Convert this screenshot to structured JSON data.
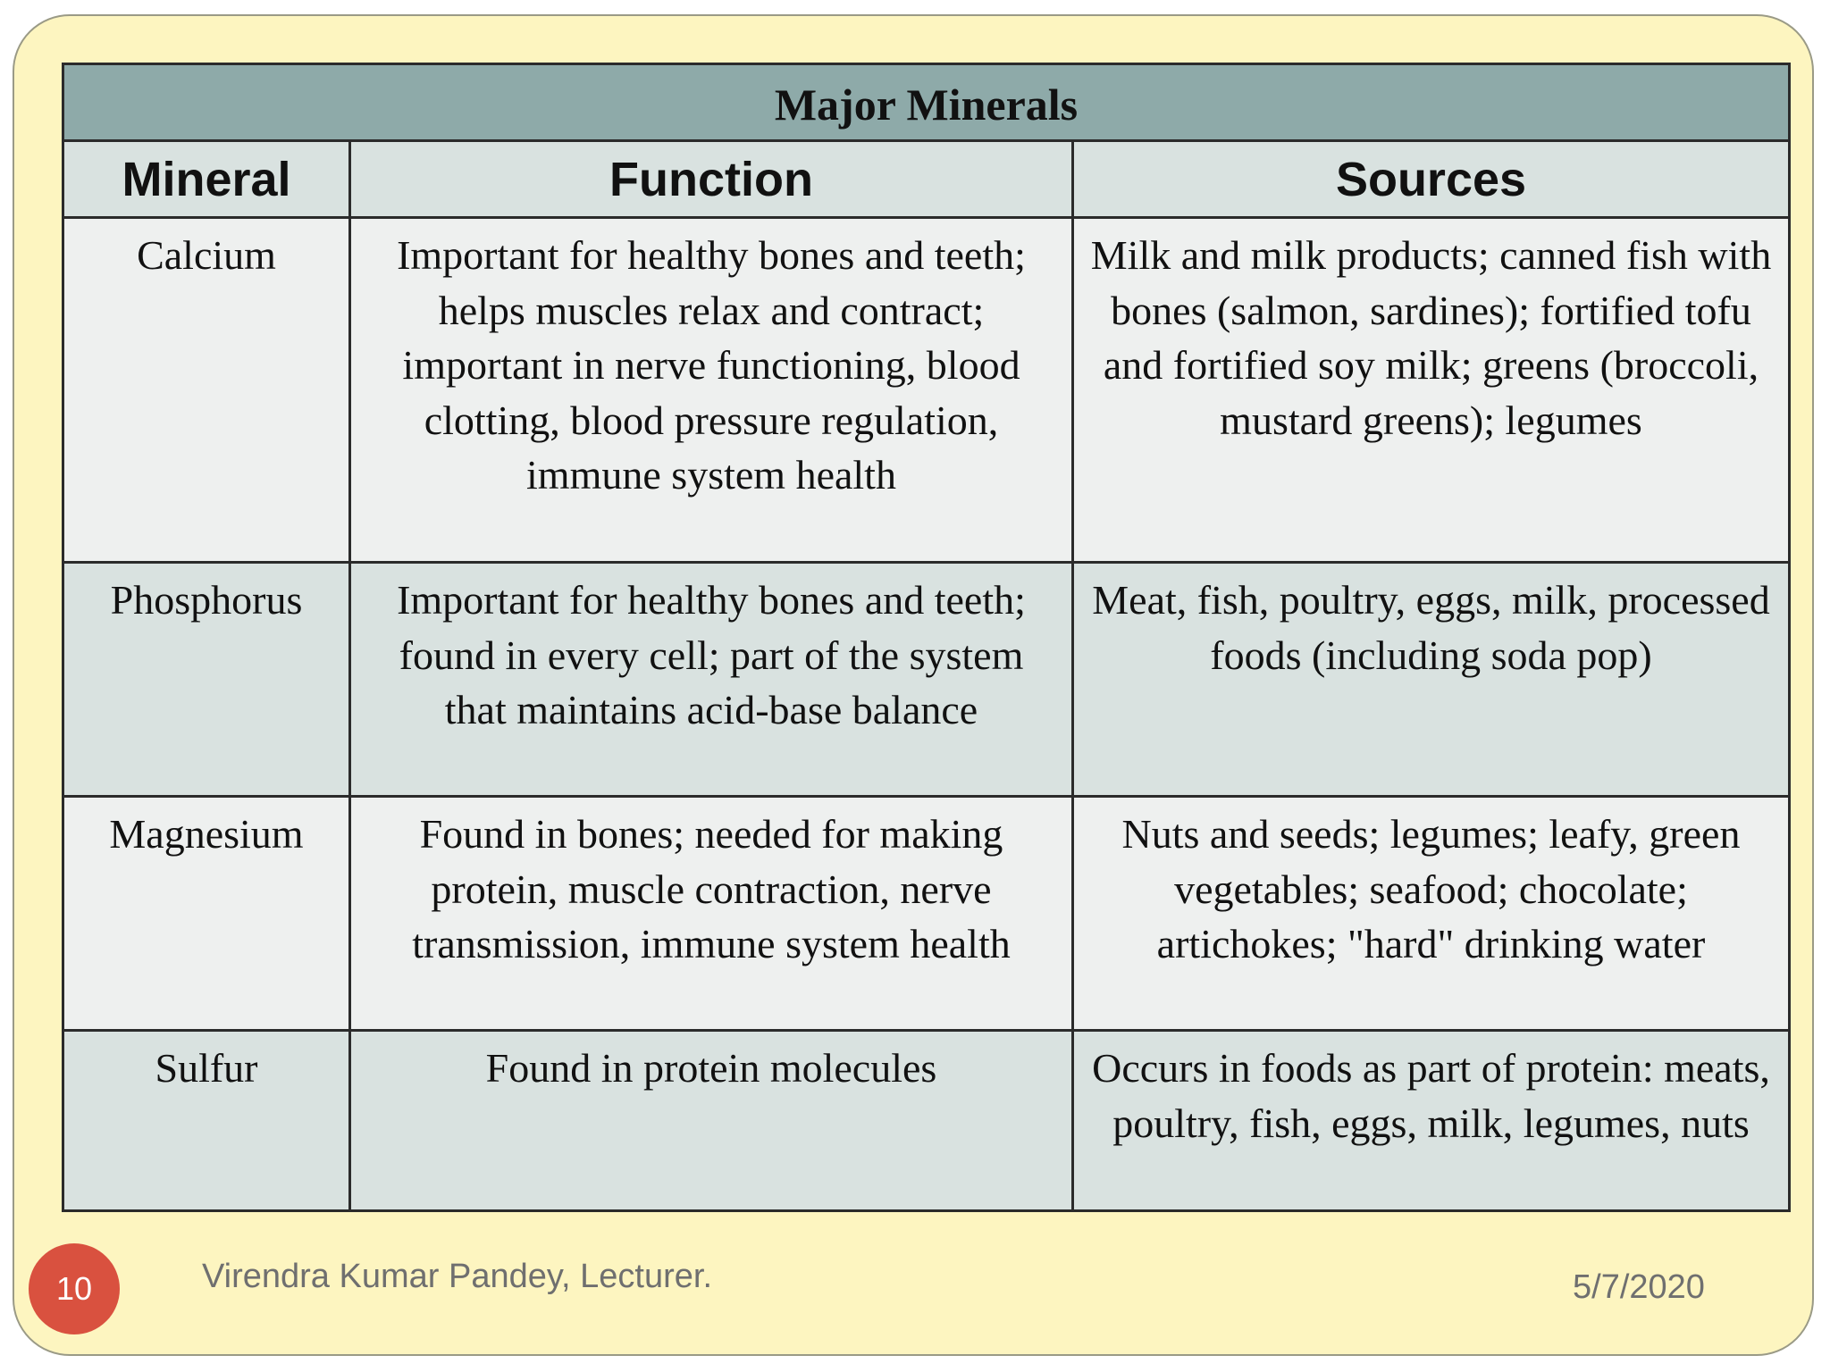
{
  "table": {
    "caption": "Major Minerals",
    "headers": [
      "Mineral",
      "Function",
      "Sources"
    ],
    "rows": [
      {
        "mineral": "Calcium",
        "function": "Important for healthy bones and teeth; helps muscles relax and contract; important in nerve functioning, blood clotting, blood pressure regulation, immune system health",
        "sources": "Milk and milk products; canned fish with bones (salmon, sardines); fortified tofu and fortified soy milk; greens (broccoli, mustard greens); legumes"
      },
      {
        "mineral": "Phosphorus",
        "function": "Important for healthy bones and teeth; found in every cell; part of the system that maintains acid-base balance",
        "sources": "Meat, fish, poultry, eggs, milk, processed foods (including soda pop)"
      },
      {
        "mineral": "Magnesium",
        "function": "Found in bones; needed for making protein, muscle contraction, nerve transmission, immune system health",
        "sources": "Nuts and seeds; legumes; leafy, green vegetables; seafood; chocolate; artichokes; \"hard\" drinking water"
      },
      {
        "mineral": "Sulfur",
        "function": "Found in protein molecules",
        "sources": "Occurs in foods as part of protein: meats, poultry, fish, eggs, milk, legumes, nuts"
      }
    ]
  },
  "footer": {
    "slide_number": "10",
    "author": "Virendra Kumar Pandey, Lecturer.",
    "date": "5/7/2020"
  },
  "colors": {
    "slide_background": "#fdf5c0",
    "caption_background": "#8eaaa9",
    "header_background": "#d9e2e0",
    "row_light": "#eef0ef",
    "row_dark": "#d9e2e0",
    "slide_number_badge": "#d9513f"
  }
}
